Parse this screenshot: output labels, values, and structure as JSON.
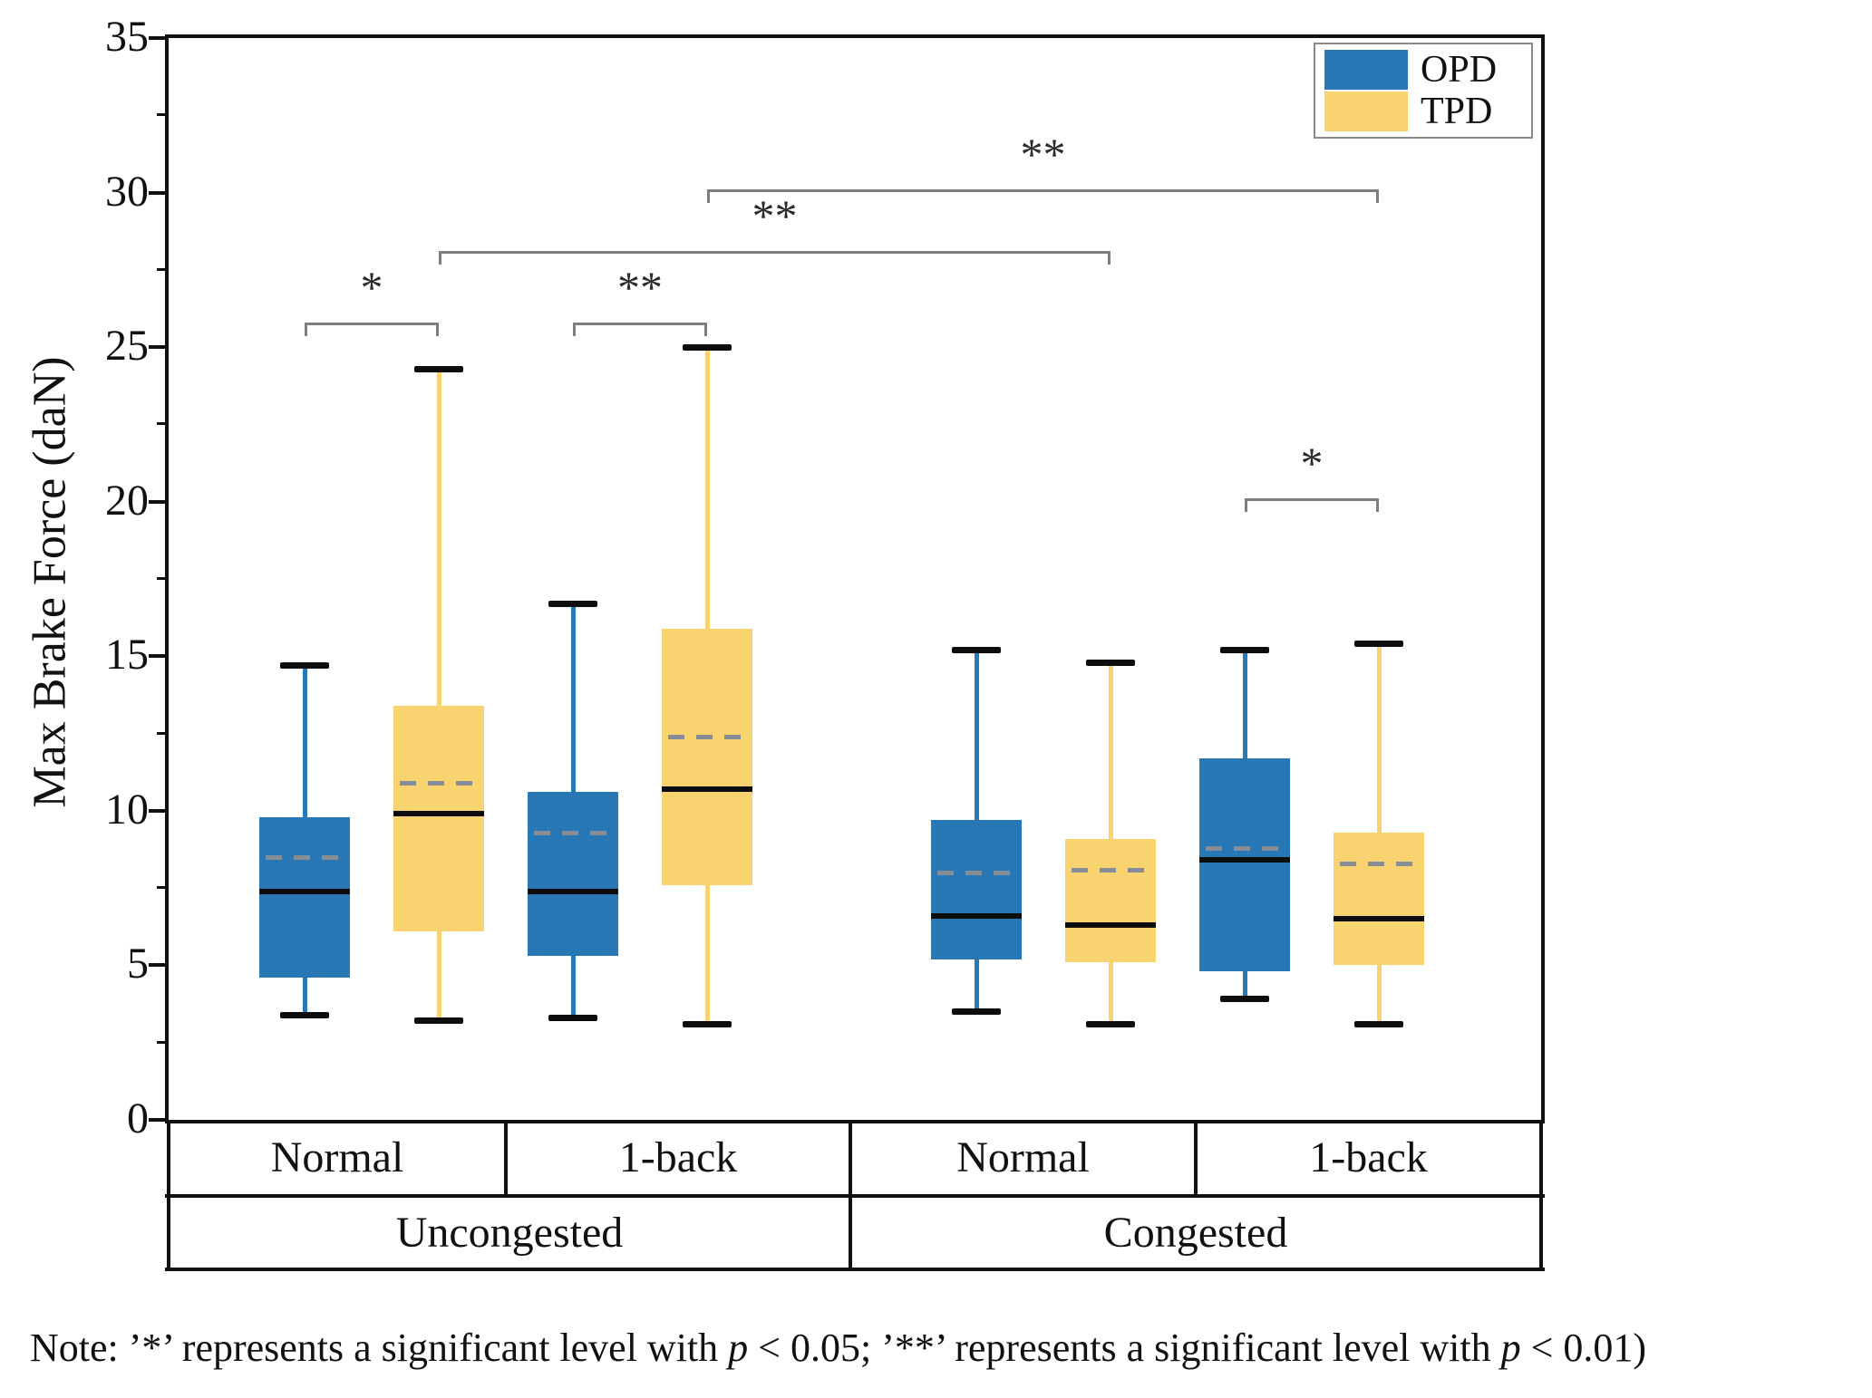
{
  "chart_data": {
    "type": "boxplot",
    "title": "",
    "xlabel": "",
    "ylabel": "Max Brake Force (daN)",
    "ylim": [
      0,
      35
    ],
    "yticks": [
      0,
      5,
      10,
      15,
      20,
      25,
      30,
      35
    ],
    "ytick_minor_step": 2.5,
    "grid": false,
    "legend_position": "top-right",
    "series": [
      {
        "name": "OPD",
        "color": "#2878B5"
      },
      {
        "name": "TPD",
        "color": "#F9D36F"
      }
    ],
    "boxes": [
      {
        "series": "OPD",
        "condition": "Uncongested",
        "task": "Normal",
        "whisker_low": 3.4,
        "q1": 4.6,
        "median": 7.4,
        "mean": 8.5,
        "q3": 9.8,
        "whisker_high": 14.7
      },
      {
        "series": "TPD",
        "condition": "Uncongested",
        "task": "Normal",
        "whisker_low": 3.2,
        "q1": 6.1,
        "median": 9.9,
        "mean": 10.9,
        "q3": 13.4,
        "whisker_high": 24.3
      },
      {
        "series": "OPD",
        "condition": "Uncongested",
        "task": "1-back",
        "whisker_low": 3.3,
        "q1": 5.3,
        "median": 7.4,
        "mean": 9.3,
        "q3": 10.6,
        "whisker_high": 16.7
      },
      {
        "series": "TPD",
        "condition": "Uncongested",
        "task": "1-back",
        "whisker_low": 3.1,
        "q1": 7.6,
        "median": 10.7,
        "mean": 12.4,
        "q3": 15.9,
        "whisker_high": 25.0
      },
      {
        "series": "OPD",
        "condition": "Congested",
        "task": "Normal",
        "whisker_low": 3.5,
        "q1": 5.2,
        "median": 6.6,
        "mean": 8.0,
        "q3": 9.7,
        "whisker_high": 15.2
      },
      {
        "series": "TPD",
        "condition": "Congested",
        "task": "Normal",
        "whisker_low": 3.1,
        "q1": 5.1,
        "median": 6.3,
        "mean": 8.1,
        "q3": 9.1,
        "whisker_high": 14.8
      },
      {
        "series": "OPD",
        "condition": "Congested",
        "task": "1-back",
        "whisker_low": 3.9,
        "q1": 4.8,
        "median": 8.4,
        "mean": 8.8,
        "q3": 11.7,
        "whisker_high": 15.2
      },
      {
        "series": "TPD",
        "condition": "Congested",
        "task": "1-back",
        "whisker_low": 3.1,
        "q1": 5.0,
        "median": 6.5,
        "mean": 8.3,
        "q3": 9.3,
        "whisker_high": 15.4
      }
    ],
    "significance": [
      {
        "from_box": 0,
        "to_box": 1,
        "label": "*",
        "y_value": 25.8
      },
      {
        "from_box": 2,
        "to_box": 3,
        "label": "**",
        "y_value": 25.8
      },
      {
        "from_box": 1,
        "to_box": 5,
        "label": "**",
        "y_value": 28.1
      },
      {
        "from_box": 3,
        "to_box": 7,
        "label": "**",
        "y_value": 30.1
      },
      {
        "from_box": 6,
        "to_box": 7,
        "label": "*",
        "y_value": 20.1
      }
    ],
    "x_axis_table": {
      "task_row": [
        "Normal",
        "1-back",
        "Normal",
        "1-back"
      ],
      "condition_row": [
        "Uncongested",
        "Congested"
      ]
    }
  },
  "legend": {
    "items": [
      {
        "label": "OPD",
        "color": "#2878B5"
      },
      {
        "label": "TPD",
        "color": "#F9D36F"
      }
    ]
  },
  "note": {
    "parts": [
      {
        "text": "Note: ’*’ represents a significant level with "
      },
      {
        "text": "p",
        "italic": true
      },
      {
        "text": " < 0.05; ’**’ represents a significant level with "
      },
      {
        "text": "p",
        "italic": true
      },
      {
        "text": " < 0.01)"
      }
    ]
  }
}
